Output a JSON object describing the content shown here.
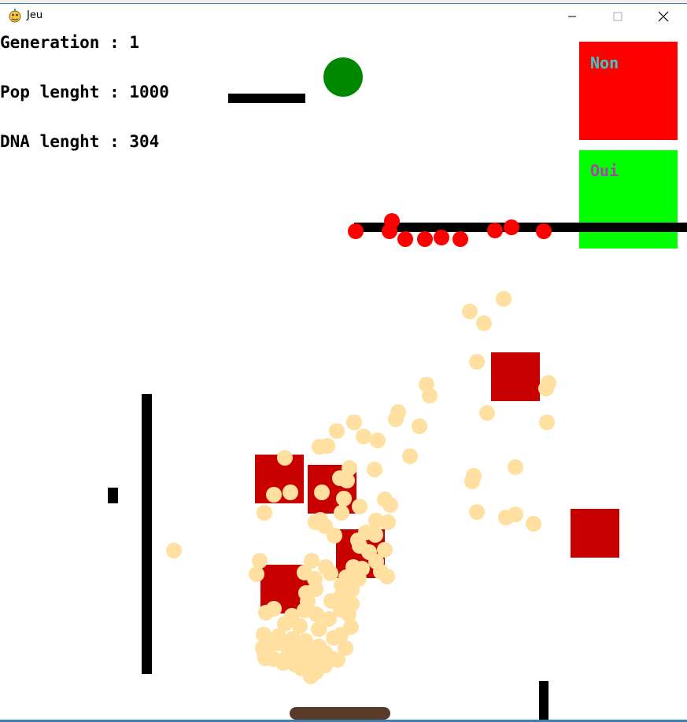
{
  "window": {
    "title": "Jeu",
    "app_icon": "pygame-snake-icon",
    "controls": [
      "minimize-icon",
      "maximize-icon",
      "close-icon"
    ]
  },
  "hud": {
    "generation": "Generation : 1",
    "population": "Pop lenght : 1000",
    "dna": "DNA lenght : 304"
  },
  "buttons": {
    "non": {
      "label": "Non",
      "color": "#ff0000",
      "text_color": "#33cccc"
    },
    "oui": {
      "label": "Oui",
      "color": "#00ff00",
      "text_color": "#aa44aa"
    }
  },
  "colors": {
    "target": "#008800",
    "wall": "#000000",
    "obstacle": "#c80000",
    "agent": "#ffe0a0",
    "dead_agent": "#ff0000",
    "ground": "#5a3a28"
  }
}
